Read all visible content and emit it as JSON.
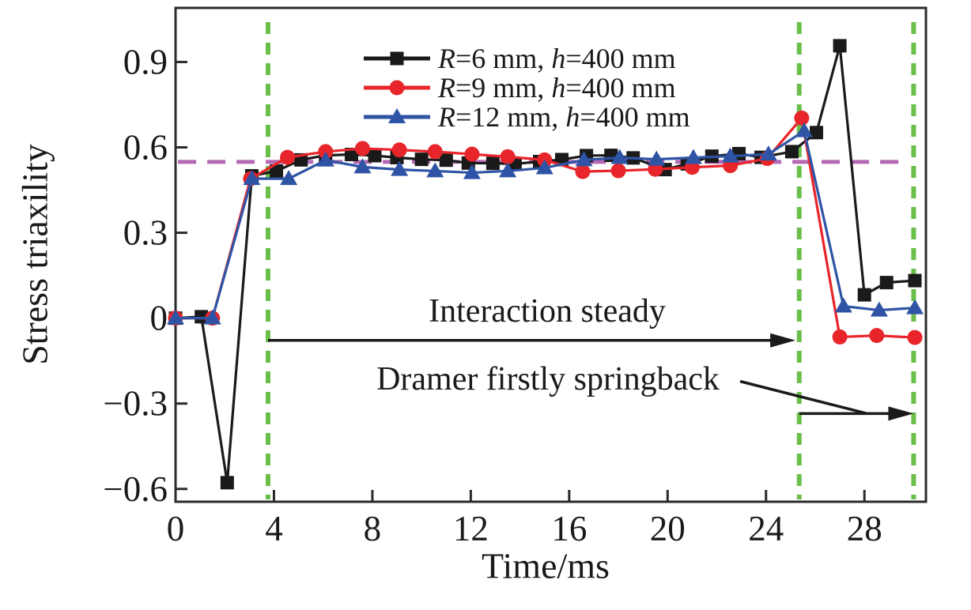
{
  "chart_data": {
    "type": "line",
    "title": "",
    "xlabel": "Time/ms",
    "ylabel": "Stress triaxility",
    "xlim": [
      0,
      30.5
    ],
    "ylim": [
      -0.645,
      1.09
    ],
    "x_ticks": [
      0,
      4,
      8,
      12,
      16,
      20,
      24,
      28
    ],
    "y_ticks": [
      -0.6,
      -0.3,
      0,
      0.3,
      0.6,
      0.9
    ],
    "grid": false,
    "legend_position": "top-center-inside",
    "frame_color": "#2b2b2b",
    "reference_lines": {
      "steady_level": {
        "v": 0.549,
        "t_start": 0.1,
        "t_end": 29.8,
        "color": "#b469b5",
        "style": "dashed"
      },
      "event_times": {
        "t": [
          3.76,
          25.35,
          30.0
        ],
        "color": "#6abf4b",
        "style": "dashed"
      }
    },
    "annotations": [
      {
        "text": "Interaction steady",
        "arrow": {
          "type": "horizontal",
          "v": -0.078,
          "from_t": 3.76,
          "to_t": 25.2
        }
      },
      {
        "text": "Dramer firstly springback",
        "arrow": {
          "type": "horizontal",
          "v": -0.335,
          "from_t": 25.35,
          "to_t": 30.0
        },
        "leader": {
          "from": [
            22.95,
            -0.222
          ],
          "to": [
            28.1,
            -0.335
          ]
        }
      }
    ],
    "series": [
      {
        "name": "R=6 mm, h=400 mm",
        "color": "#1a1a1a",
        "marker": "square",
        "points": [
          [
            0,
            0
          ],
          [
            1.05,
            0.005
          ],
          [
            2.1,
            -0.578
          ],
          [
            3.1,
            0.5
          ],
          [
            4.1,
            0.517
          ],
          [
            5.1,
            0.556
          ],
          [
            6.1,
            0.572
          ],
          [
            7.15,
            0.575
          ],
          [
            8.1,
            0.571
          ],
          [
            9,
            0.564
          ],
          [
            10,
            0.558
          ],
          [
            11,
            0.555
          ],
          [
            11.9,
            0.545
          ],
          [
            12.9,
            0.544
          ],
          [
            13.8,
            0.542
          ],
          [
            14.8,
            0.55
          ],
          [
            15.7,
            0.557
          ],
          [
            16.7,
            0.571
          ],
          [
            17.7,
            0.572
          ],
          [
            18.6,
            0.563
          ],
          [
            19.9,
            0.522
          ],
          [
            20.8,
            0.542
          ],
          [
            21.8,
            0.569
          ],
          [
            22.9,
            0.578
          ],
          [
            23.8,
            0.565
          ],
          [
            25.05,
            0.585
          ],
          [
            26.05,
            0.652
          ],
          [
            27,
            0.957
          ],
          [
            28,
            0.082
          ],
          [
            28.9,
            0.125
          ],
          [
            30.05,
            0.132
          ]
        ]
      },
      {
        "name": "R=9 mm, h=400 mm",
        "color": "#e8252a",
        "marker": "circle",
        "points": [
          [
            0,
            0
          ],
          [
            1.5,
            0
          ],
          [
            3.05,
            0.49
          ],
          [
            4.55,
            0.565
          ],
          [
            6.1,
            0.585
          ],
          [
            7.6,
            0.596
          ],
          [
            9.1,
            0.591
          ],
          [
            10.55,
            0.585
          ],
          [
            12.05,
            0.576
          ],
          [
            13.5,
            0.567
          ],
          [
            15,
            0.556
          ],
          [
            16.55,
            0.515
          ],
          [
            18,
            0.518
          ],
          [
            19.5,
            0.523
          ],
          [
            21,
            0.53
          ],
          [
            22.55,
            0.536
          ],
          [
            24.05,
            0.561
          ],
          [
            25.45,
            0.703
          ],
          [
            27,
            -0.066
          ],
          [
            28.5,
            -0.061
          ],
          [
            30.05,
            -0.068
          ]
        ]
      },
      {
        "name": "R=12 mm, h=400 mm",
        "color": "#2f54a5",
        "marker": "triangle",
        "points": [
          [
            0,
            0
          ],
          [
            1.5,
            0
          ],
          [
            3.1,
            0.49
          ],
          [
            4.6,
            0.49
          ],
          [
            6.1,
            0.555
          ],
          [
            7.6,
            0.531
          ],
          [
            9.1,
            0.522
          ],
          [
            10.55,
            0.517
          ],
          [
            12.05,
            0.511
          ],
          [
            13.5,
            0.517
          ],
          [
            15,
            0.528
          ],
          [
            16.6,
            0.556
          ],
          [
            18.05,
            0.564
          ],
          [
            19.55,
            0.558
          ],
          [
            21.05,
            0.564
          ],
          [
            22.55,
            0.569
          ],
          [
            24.1,
            0.576
          ],
          [
            25.55,
            0.658
          ],
          [
            27.15,
            0.042
          ],
          [
            28.6,
            0.028
          ],
          [
            30.05,
            0.036
          ]
        ]
      }
    ]
  }
}
